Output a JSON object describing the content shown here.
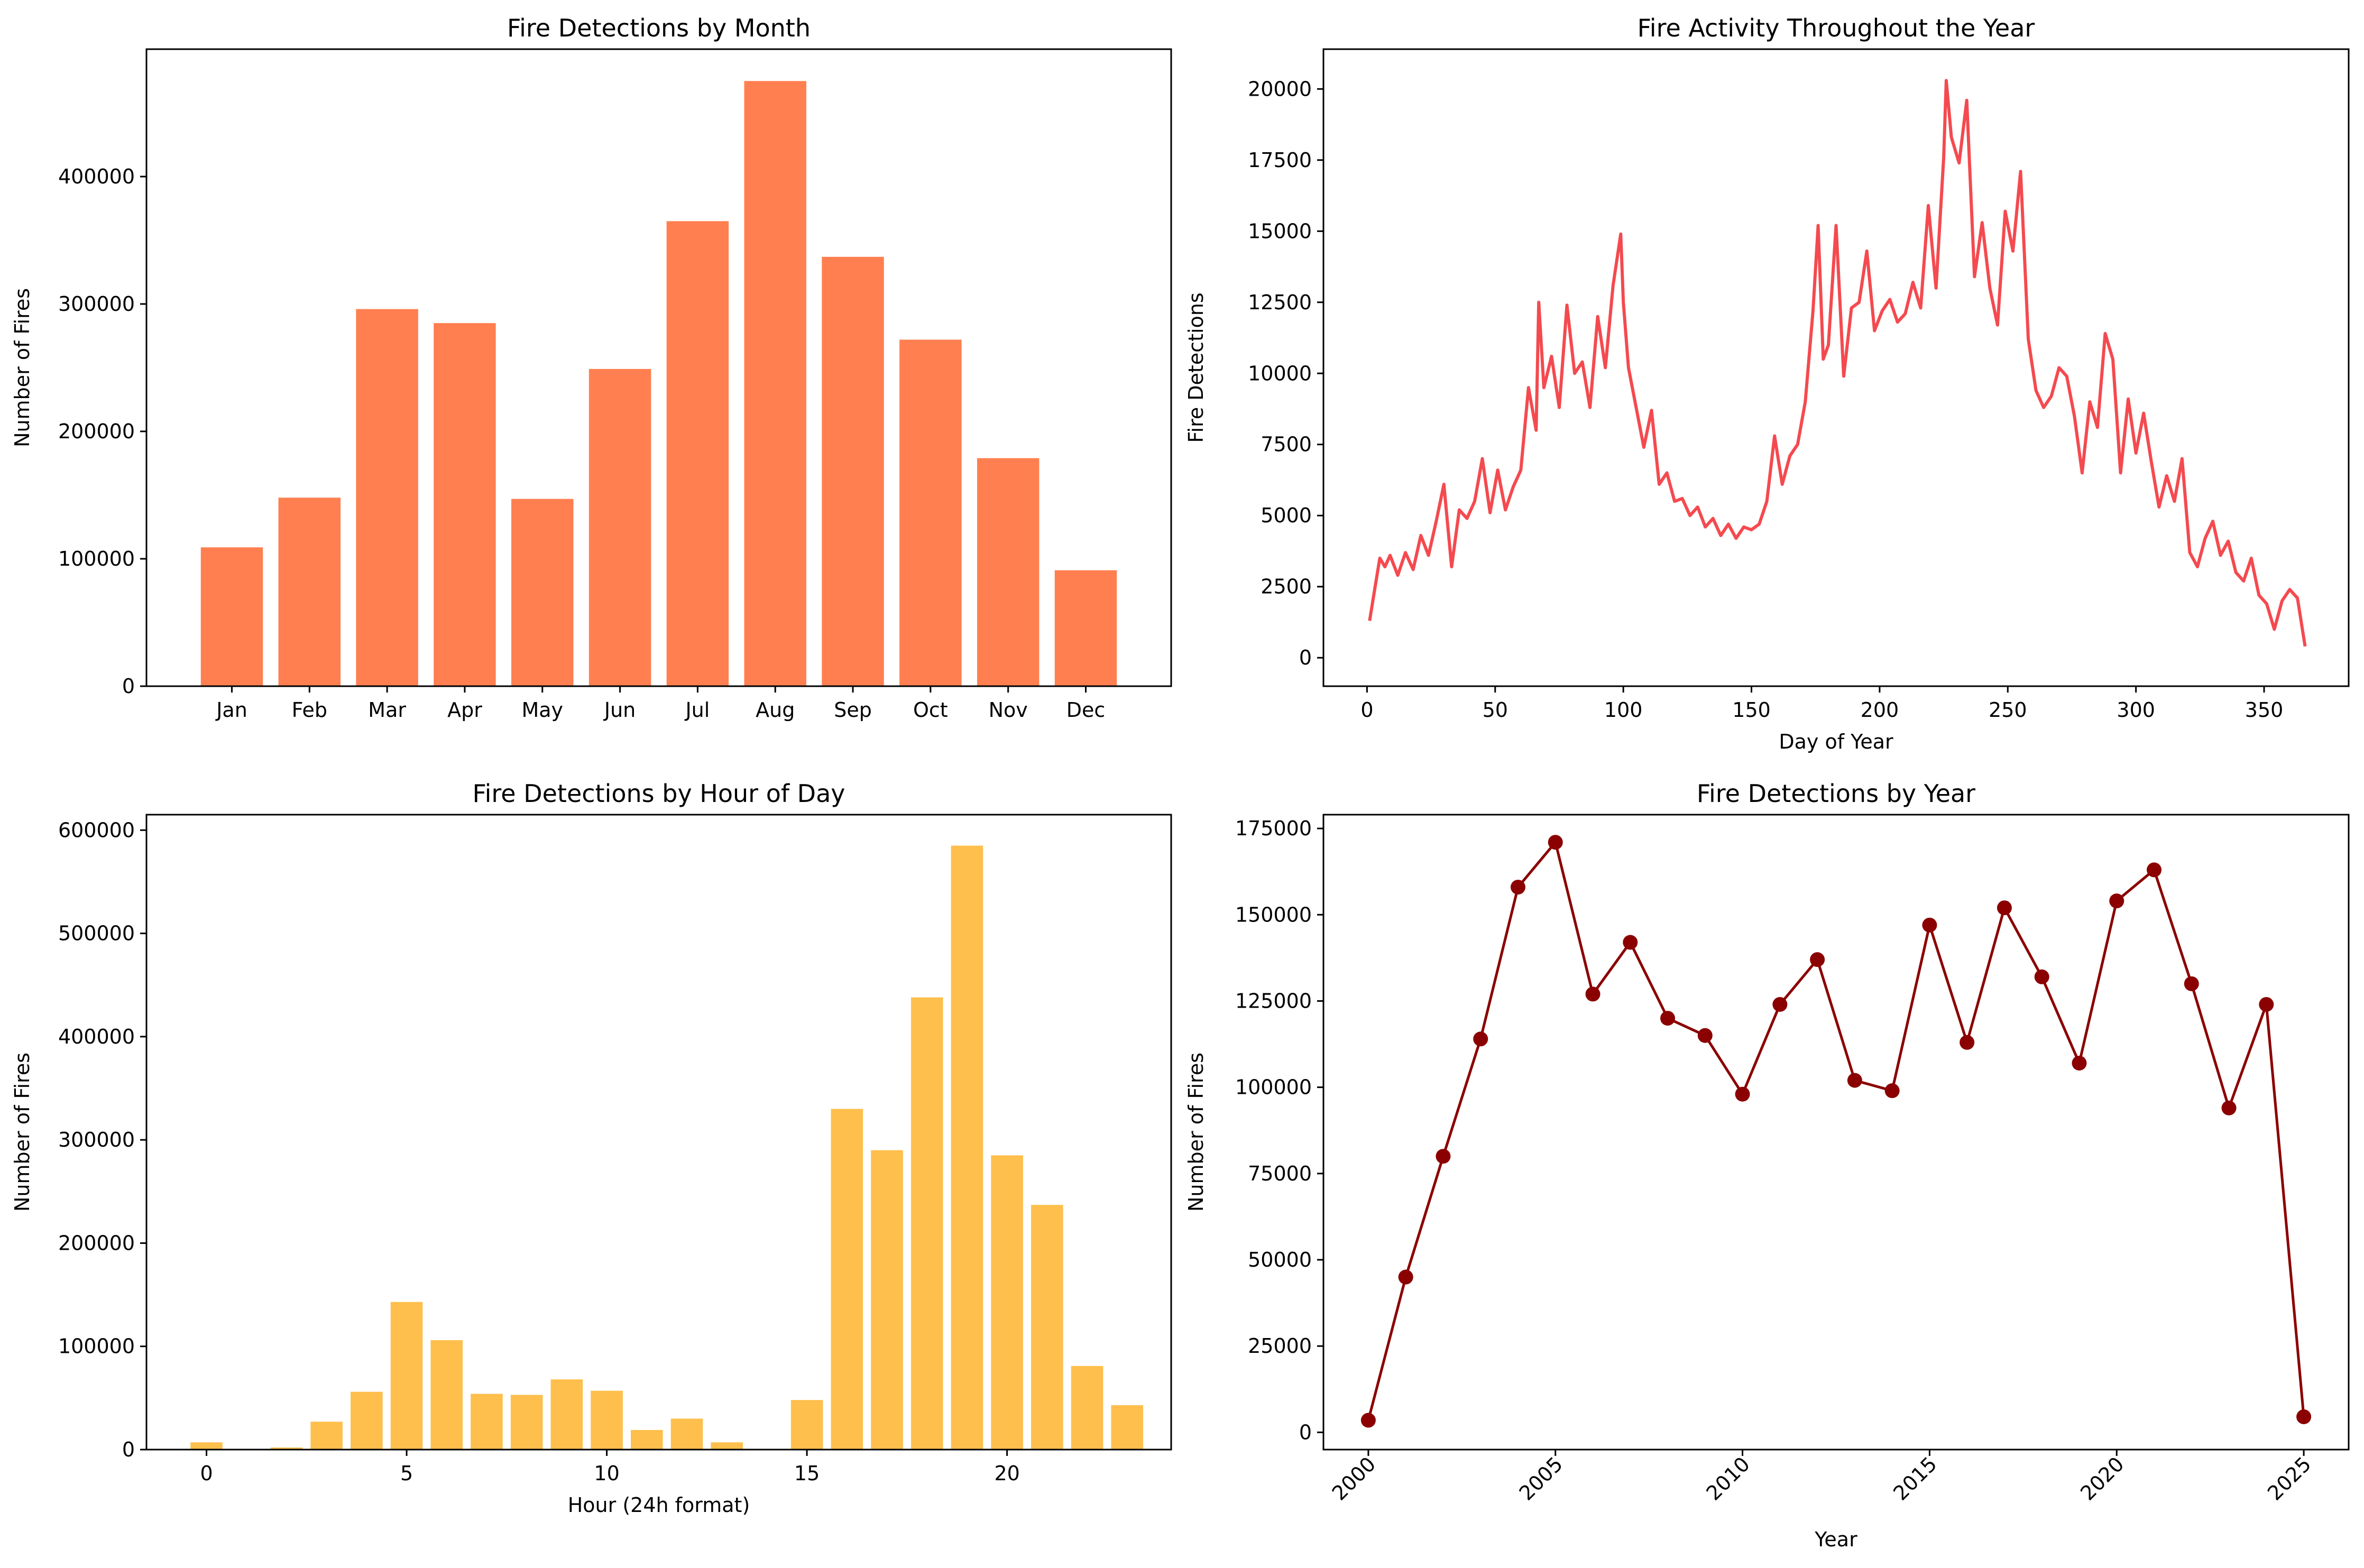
{
  "colors": {
    "month_bars": "#FF7F50",
    "hour_bars": "#FFBF4C",
    "day_line": "#F44A4F",
    "year_line": "#8B0000"
  },
  "chart_data": [
    {
      "type": "bar",
      "title": "Fire Detections by Month",
      "xlabel": "",
      "ylabel": "Number of Fires",
      "categories": [
        "Jan",
        "Feb",
        "Mar",
        "Apr",
        "May",
        "Jun",
        "Jul",
        "Aug",
        "Sep",
        "Oct",
        "Nov",
        "Dec"
      ],
      "values": [
        109000,
        148000,
        296000,
        285000,
        147000,
        249000,
        365000,
        475000,
        337000,
        272000,
        179000,
        91000
      ],
      "ylim": [
        0,
        500000
      ],
      "yticks": [
        0,
        100000,
        200000,
        300000,
        400000
      ],
      "grid": false
    },
    {
      "type": "line",
      "title": "Fire Activity Throughout the Year",
      "xlabel": "Day of Year",
      "ylabel": "Fire Detections",
      "xlim": [
        -17,
        383
      ],
      "ylim": [
        -1000,
        21400
      ],
      "xticks": [
        0,
        50,
        100,
        150,
        200,
        250,
        300,
        350
      ],
      "yticks": [
        0,
        2500,
        5000,
        7500,
        10000,
        12500,
        15000,
        17500,
        20000
      ],
      "x": [
        1,
        3,
        5,
        7,
        9,
        12,
        15,
        18,
        21,
        24,
        27,
        30,
        33,
        36,
        39,
        42,
        45,
        48,
        51,
        54,
        57,
        60,
        63,
        66,
        67,
        69,
        72,
        75,
        78,
        81,
        84,
        87,
        90,
        93,
        96,
        99,
        100,
        102,
        105,
        108,
        111,
        114,
        117,
        120,
        123,
        126,
        129,
        132,
        135,
        138,
        141,
        144,
        147,
        150,
        153,
        156,
        159,
        162,
        165,
        168,
        171,
        174,
        176,
        178,
        180,
        183,
        186,
        189,
        192,
        195,
        198,
        201,
        204,
        207,
        210,
        213,
        216,
        219,
        222,
        225,
        226,
        228,
        231,
        234,
        237,
        240,
        243,
        246,
        249,
        252,
        255,
        258,
        261,
        264,
        267,
        270,
        273,
        276,
        279,
        282,
        285,
        288,
        291,
        294,
        297,
        300,
        303,
        306,
        309,
        312,
        315,
        318,
        321,
        324,
        327,
        330,
        333,
        336,
        339,
        342,
        345,
        348,
        351,
        354,
        357,
        360,
        363,
        366
      ],
      "y": [
        1300,
        2400,
        3500,
        3200,
        3600,
        2900,
        3700,
        3100,
        4300,
        3600,
        4800,
        6100,
        3200,
        5200,
        4900,
        5500,
        7000,
        5100,
        6600,
        5200,
        6000,
        6600,
        9500,
        8000,
        12500,
        9500,
        10600,
        8800,
        12400,
        10000,
        10400,
        8800,
        12000,
        10200,
        13100,
        14900,
        12500,
        10200,
        8800,
        7400,
        8700,
        6100,
        6500,
        5500,
        5600,
        5000,
        5300,
        4600,
        4900,
        4300,
        4700,
        4200,
        4600,
        4500,
        4700,
        5500,
        7800,
        6100,
        7100,
        7500,
        9000,
        12200,
        15200,
        10500,
        11000,
        15200,
        9900,
        12300,
        12500,
        14300,
        11500,
        12200,
        12600,
        11800,
        12100,
        13200,
        12300,
        15900,
        13000,
        17600,
        20300,
        18300,
        17400,
        19600,
        13400,
        15300,
        13000,
        11700,
        15700,
        14300,
        17100,
        11200,
        9400,
        8800,
        9200,
        10200,
        9900,
        8500,
        6500,
        9000,
        8100,
        11400,
        10500,
        6500,
        9100,
        7200,
        8600,
        6900,
        5300,
        6400,
        5500,
        7000,
        3700,
        3200,
        4200,
        4800,
        3600,
        4100,
        3000,
        2700,
        3500,
        2200,
        1900,
        1000,
        2000,
        2400,
        2100,
        400
      ],
      "grid": false
    },
    {
      "type": "bar",
      "title": "Fire Detections by Hour of Day",
      "xlabel": "Hour (24h format)",
      "ylabel": "Number of Fires",
      "categories": [
        0,
        1,
        2,
        3,
        4,
        5,
        6,
        7,
        8,
        9,
        10,
        11,
        12,
        13,
        14,
        15,
        16,
        17,
        18,
        19,
        20,
        21,
        22,
        23
      ],
      "values": [
        7000,
        0,
        2000,
        27000,
        56000,
        143000,
        106000,
        54000,
        53000,
        68000,
        57000,
        19000,
        30000,
        7000,
        0,
        48000,
        330000,
        290000,
        438000,
        585000,
        285000,
        237000,
        81000,
        43000
      ],
      "xlim": [
        -1.5,
        24.1
      ],
      "ylim": [
        0,
        615000
      ],
      "xticks": [
        0,
        5,
        10,
        15,
        20
      ],
      "yticks": [
        0,
        100000,
        200000,
        300000,
        400000,
        500000,
        600000
      ],
      "grid": false
    },
    {
      "type": "line",
      "title": "Fire Detections by Year",
      "xlabel": "Year",
      "ylabel": "Number of Fires",
      "x": [
        2000,
        2001,
        2002,
        2003,
        2004,
        2005,
        2006,
        2007,
        2008,
        2009,
        2010,
        2011,
        2012,
        2013,
        2014,
        2015,
        2016,
        2017,
        2018,
        2019,
        2020,
        2021,
        2022,
        2023,
        2024,
        2025
      ],
      "y": [
        3500,
        45000,
        80000,
        114000,
        158000,
        171000,
        127000,
        142000,
        120000,
        115000,
        98000,
        124000,
        137000,
        102000,
        99000,
        147000,
        113000,
        152000,
        132000,
        107000,
        154000,
        163000,
        130000,
        94000,
        124000,
        4500
      ],
      "xlim": [
        -1.2,
        26.2
      ],
      "ylim": [
        -5000,
        179000
      ],
      "xticks": [
        2000,
        2005,
        2010,
        2015,
        2020,
        2025
      ],
      "yticks": [
        0,
        25000,
        50000,
        75000,
        100000,
        125000,
        150000,
        175000
      ],
      "grid": false
    }
  ]
}
